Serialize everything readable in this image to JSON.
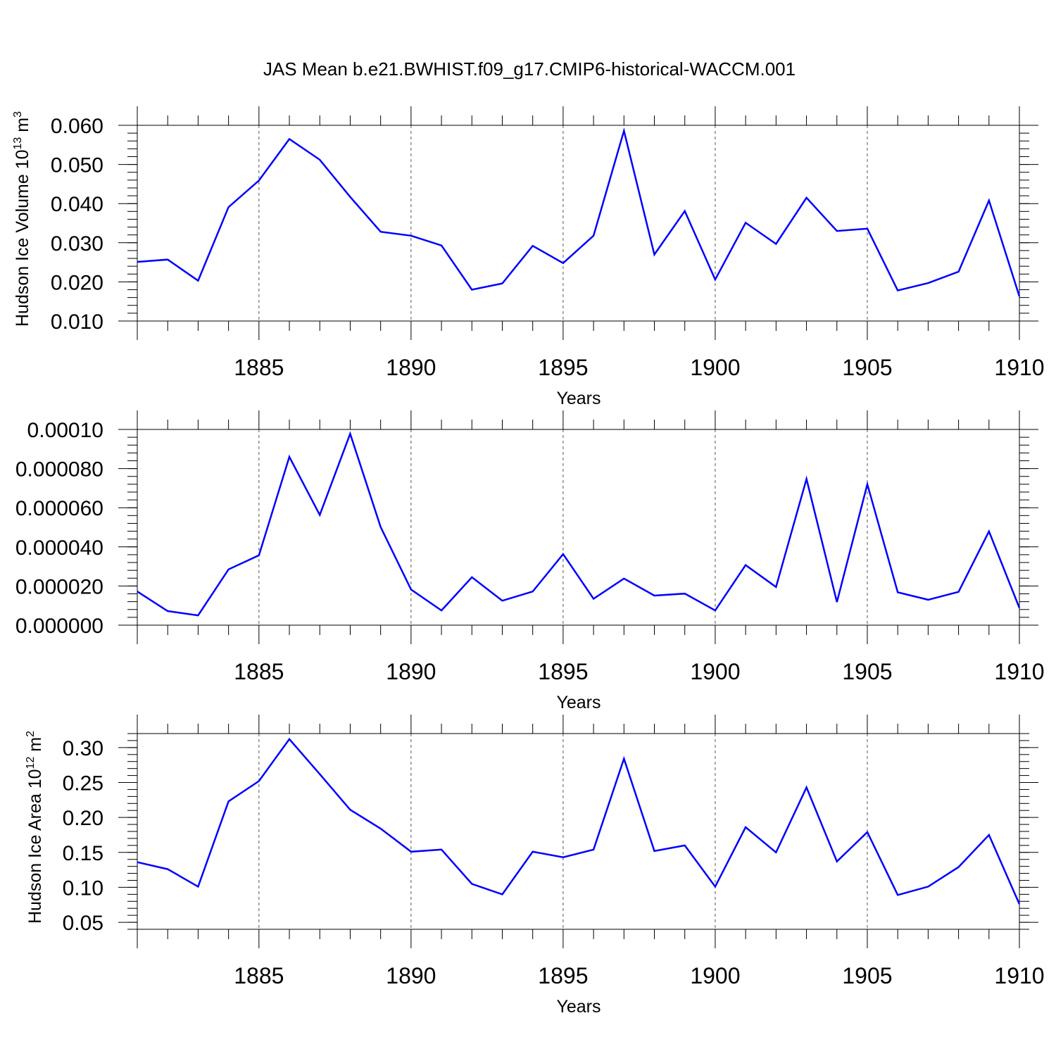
{
  "title": "JAS Mean b.e21.BWHIST.f09_g17.CMIP6-historical-WACCM.001",
  "colors": {
    "line": "#0000ff",
    "axis": "#000000",
    "grid": "#555555"
  },
  "chart_data": [
    {
      "type": "line",
      "ylabel": {
        "text": "Hudson Ice Volume 10",
        "sup": "13",
        "unit": " m",
        "unit_sup": "3"
      },
      "xlabel": "Years",
      "xlim": [
        1881,
        1910
      ],
      "ylim": [
        0.01,
        0.06
      ],
      "yticks": [
        0.01,
        0.02,
        0.03,
        0.04,
        0.05,
        0.06
      ],
      "ytick_labels": [
        "0.010",
        "0.020",
        "0.030",
        "0.040",
        "0.050",
        "0.060"
      ],
      "xticks": [
        1885,
        1890,
        1895,
        1900,
        1905,
        1910
      ],
      "xtick_labels": [
        "1885",
        "1890",
        "1895",
        "1900",
        "1905",
        "1910"
      ],
      "grid": "dashed vertical at major x ticks",
      "x": [
        1881,
        1882,
        1883,
        1884,
        1885,
        1886,
        1887,
        1888,
        1889,
        1890,
        1891,
        1892,
        1893,
        1894,
        1895,
        1896,
        1897,
        1898,
        1899,
        1900,
        1901,
        1902,
        1903,
        1904,
        1905,
        1906,
        1907,
        1908,
        1909,
        1910
      ],
      "values": [
        0.0251,
        0.0257,
        0.0203,
        0.0391,
        0.0459,
        0.0565,
        0.0512,
        0.0417,
        0.0328,
        0.0318,
        0.0293,
        0.018,
        0.0196,
        0.0292,
        0.0248,
        0.0318,
        0.0586,
        0.027,
        0.0381,
        0.0206,
        0.0351,
        0.0297,
        0.0415,
        0.033,
        0.0336,
        0.0178,
        0.0197,
        0.0226,
        0.0408,
        0.0163
      ]
    },
    {
      "type": "line",
      "ylabel": null,
      "xlabel": "Years",
      "xlim": [
        1881,
        1910
      ],
      "ylim": [
        0.0,
        0.0001
      ],
      "yticks": [
        0.0,
        2e-05,
        4e-05,
        6e-05,
        8e-05,
        0.0001
      ],
      "ytick_labels": [
        "0.000000",
        "0.000020",
        "0.000040",
        "0.000060",
        "0.000080",
        "0.00010"
      ],
      "xticks": [
        1885,
        1890,
        1895,
        1900,
        1905,
        1910
      ],
      "xtick_labels": [
        "1885",
        "1890",
        "1895",
        "1900",
        "1905",
        "1910"
      ],
      "grid": "dashed vertical at major x ticks",
      "x": [
        1881,
        1882,
        1883,
        1884,
        1885,
        1886,
        1887,
        1888,
        1889,
        1890,
        1891,
        1892,
        1893,
        1894,
        1895,
        1896,
        1897,
        1898,
        1899,
        1900,
        1901,
        1902,
        1903,
        1904,
        1905,
        1906,
        1907,
        1908,
        1909,
        1910
      ],
      "values": [
        1.72e-05,
        7.2e-06,
        5e-06,
        2.85e-05,
        3.57e-05,
        8.6e-05,
        5.63e-05,
        9.78e-05,
        5.01e-05,
        1.82e-05,
        7.5e-06,
        2.45e-05,
        1.25e-05,
        1.72e-05,
        3.63e-05,
        1.35e-05,
        2.38e-05,
        1.51e-05,
        1.61e-05,
        7.5e-06,
        3.07e-05,
        1.95e-05,
        7.47e-05,
        1.18e-05,
        7.2e-05,
        1.68e-05,
        1.3e-05,
        1.7e-05,
        4.79e-05,
        8.8e-06
      ]
    },
    {
      "type": "line",
      "ylabel": {
        "text": "Hudson Ice Area 10",
        "sup": "12",
        "unit": " m",
        "unit_sup": "2"
      },
      "xlabel": "Years",
      "xlim": [
        1881,
        1910
      ],
      "ylim": [
        0.04,
        0.32
      ],
      "yticks": [
        0.05,
        0.1,
        0.15,
        0.2,
        0.25,
        0.3
      ],
      "ytick_labels": [
        "0.05",
        "0.10",
        "0.15",
        "0.20",
        "0.25",
        "0.30"
      ],
      "xticks": [
        1885,
        1890,
        1895,
        1900,
        1905,
        1910
      ],
      "xtick_labels": [
        "1885",
        "1890",
        "1895",
        "1900",
        "1905",
        "1910"
      ],
      "grid": "dashed vertical at major x ticks",
      "x": [
        1881,
        1882,
        1883,
        1884,
        1885,
        1886,
        1887,
        1888,
        1889,
        1890,
        1891,
        1892,
        1893,
        1894,
        1895,
        1896,
        1897,
        1898,
        1899,
        1900,
        1901,
        1902,
        1903,
        1904,
        1905,
        1906,
        1907,
        1908,
        1909,
        1910
      ],
      "values": [
        0.136,
        0.126,
        0.101,
        0.223,
        0.252,
        0.312,
        0.262,
        0.211,
        0.184,
        0.151,
        0.154,
        0.105,
        0.09,
        0.151,
        0.143,
        0.154,
        0.284,
        0.152,
        0.16,
        0.101,
        0.186,
        0.15,
        0.243,
        0.137,
        0.179,
        0.089,
        0.101,
        0.129,
        0.175,
        0.076
      ]
    }
  ]
}
